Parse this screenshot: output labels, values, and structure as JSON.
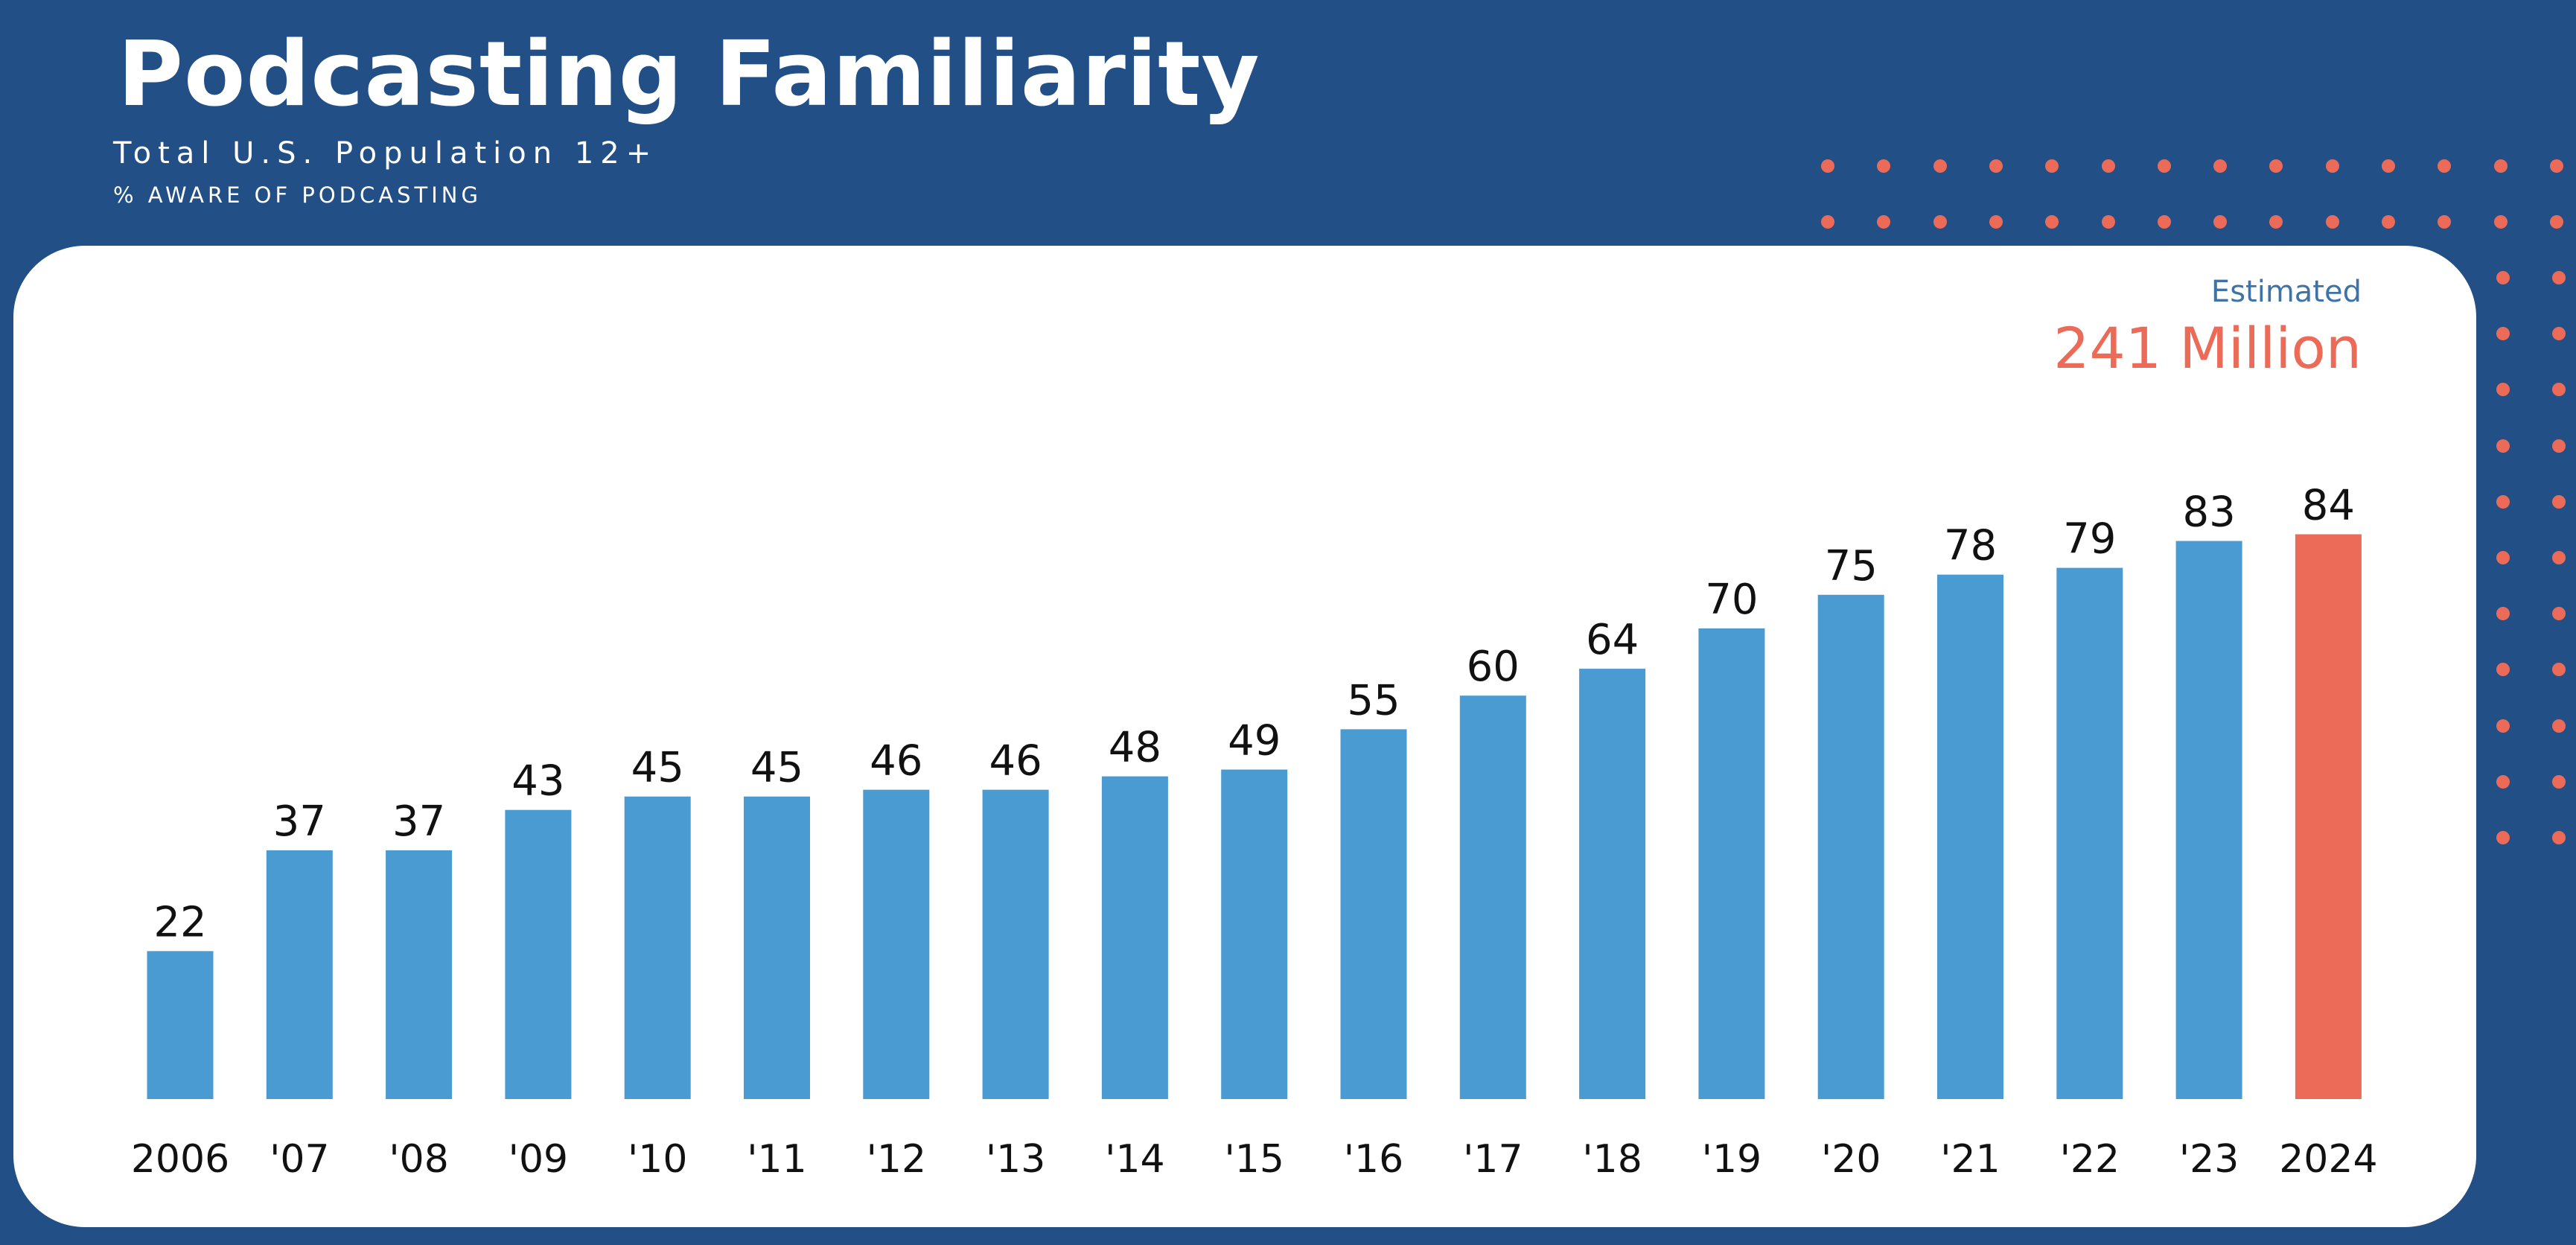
{
  "header": {
    "title": "Podcasting Familiarity",
    "subtitle": "Total U.S. Population 12+",
    "metric": "% AWARE OF PODCASTING"
  },
  "annotation": {
    "label": "Estimated",
    "value": "241 Million"
  },
  "colors": {
    "background": "#214f86",
    "bar": "#4b9bd3",
    "highlight": "#ec6b58",
    "annotation_label": "#3f73a8",
    "text": "#111111"
  },
  "chart_data": {
    "type": "bar",
    "title": "Podcasting Familiarity",
    "subtitle": "Total U.S. Population 12+",
    "ylabel": "% AWARE OF PODCASTING",
    "xlabel": "",
    "categories": [
      "2006",
      "'07",
      "'08",
      "'09",
      "'10",
      "'11",
      "'12",
      "'13",
      "'14",
      "'15",
      "'16",
      "'17",
      "'18",
      "'19",
      "'20",
      "'21",
      "'22",
      "'23",
      "2024"
    ],
    "values": [
      22,
      37,
      37,
      43,
      45,
      45,
      46,
      46,
      48,
      49,
      55,
      60,
      64,
      70,
      75,
      78,
      79,
      83,
      84
    ],
    "highlight_category": "2024",
    "ylim": [
      0,
      100
    ],
    "grid": false,
    "data_labels": true
  }
}
